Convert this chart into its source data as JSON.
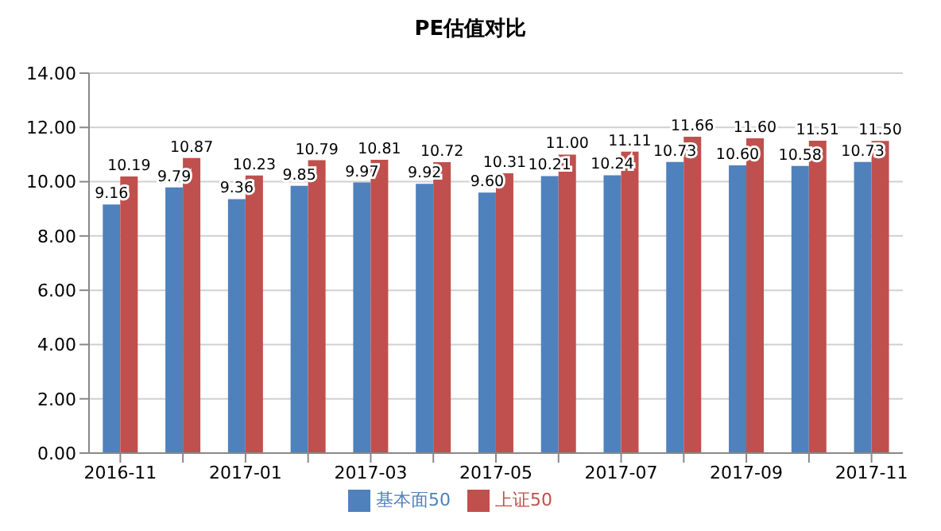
{
  "chart_data": {
    "type": "bar",
    "title": "PE估值对比",
    "categories": [
      "2016-11",
      null,
      "2017-01",
      null,
      "2017-03",
      null,
      "2017-05",
      null,
      "2017-07",
      null,
      "2017-09",
      null,
      "2017-11"
    ],
    "series": [
      {
        "name": "基本面50",
        "color": "#4f81bd",
        "values": [
          9.16,
          9.79,
          9.36,
          9.85,
          9.97,
          9.92,
          9.6,
          10.21,
          10.24,
          10.73,
          10.6,
          10.58,
          10.73
        ],
        "value_labels": [
          "9.16",
          "9.79",
          "9.36",
          "9.85",
          "9.97",
          "9.92",
          "9.60",
          "10.21",
          "10.24",
          "10.73",
          "10.60",
          "10.58",
          "10.73"
        ]
      },
      {
        "name": "上证50",
        "color": "#c0504d",
        "values": [
          10.19,
          10.87,
          10.23,
          10.79,
          10.81,
          10.72,
          10.31,
          11.0,
          11.11,
          11.66,
          11.6,
          11.51,
          11.5
        ],
        "value_labels": [
          "10.19",
          "10.87",
          "10.23",
          "10.79",
          "10.81",
          "10.72",
          "10.31",
          "11.00",
          "11.11",
          "11.66",
          "11.60",
          "11.51",
          "11.50"
        ]
      }
    ],
    "ylim": [
      0,
      14
    ],
    "yticks": [
      {
        "value": 0,
        "label": "0.00"
      },
      {
        "value": 2,
        "label": "2.00"
      },
      {
        "value": 4,
        "label": "4.00"
      },
      {
        "value": 6,
        "label": "6.00"
      },
      {
        "value": 8,
        "label": "8.00"
      },
      {
        "value": 10,
        "label": "10.00"
      },
      {
        "value": 12,
        "label": "12.00"
      },
      {
        "value": 14,
        "label": "14.00"
      }
    ],
    "grid": "y",
    "legend": "bottom"
  }
}
